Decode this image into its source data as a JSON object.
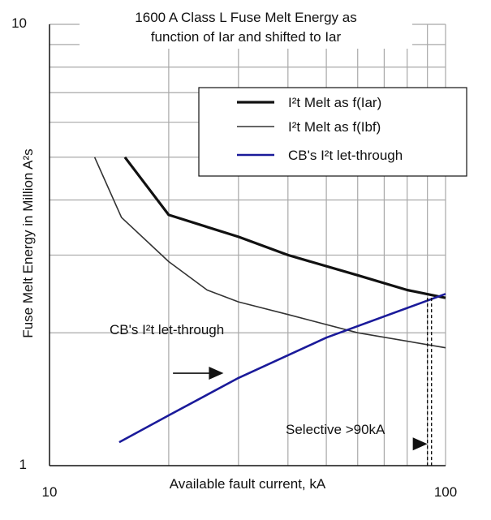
{
  "chart_data": {
    "type": "line",
    "title": "1600 A Class L Fuse Melt Energy as",
    "subtitle": "function of Iar and shifted to Iar",
    "xlabel": "Available fault current, kA",
    "ylabel": "Fuse Melt Energy in Million A²s",
    "x_scale": "log",
    "y_scale": "log",
    "xlim": [
      10,
      100
    ],
    "ylim": [
      1,
      10
    ],
    "x_ticks": [
      10,
      100
    ],
    "x_tick_labels": [
      "10",
      "100"
    ],
    "y_ticks": [
      1,
      10
    ],
    "y_tick_labels": [
      "1",
      "10"
    ],
    "grid": true,
    "legend_position": "top-right",
    "series": [
      {
        "name": "I²t Melt as f(Iar)",
        "color": "#111111",
        "style": "thick",
        "x": [
          15.5,
          20,
          30,
          40,
          60,
          80,
          100
        ],
        "y": [
          5.0,
          3.7,
          3.3,
          3.0,
          2.7,
          2.5,
          2.4
        ]
      },
      {
        "name": "I²t Melt as f(Ibf)",
        "color": "#333333",
        "style": "thin",
        "x": [
          13.0,
          15.2,
          20,
          25,
          30,
          40,
          60,
          100
        ],
        "y": [
          5.0,
          3.65,
          2.9,
          2.5,
          2.35,
          2.2,
          2.0,
          1.85
        ]
      },
      {
        "name": "CB's I²t let-through",
        "color": "#1a1a9a",
        "style": "solid",
        "x": [
          15,
          20,
          30,
          50,
          100
        ],
        "y": [
          1.13,
          1.3,
          1.58,
          1.95,
          2.45
        ]
      }
    ],
    "annotations": [
      {
        "text": "CB's I²t let-through",
        "arrow_from": [
          20.5,
          1.62
        ],
        "arrow_to": [
          27.5,
          1.62
        ]
      },
      {
        "text": "Selective >90kA",
        "arrow_from": [
          83,
          1.12
        ],
        "arrow_to": [
          90,
          1.12
        ]
      }
    ],
    "marker_x": 90,
    "marker_y": 2.4
  }
}
